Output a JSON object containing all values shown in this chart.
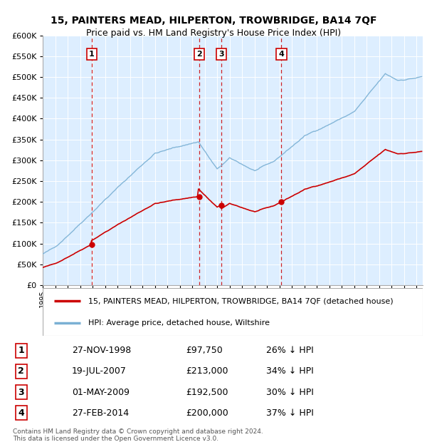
{
  "title": "15, PAINTERS MEAD, HILPERTON, TROWBRIDGE, BA14 7QF",
  "subtitle": "Price paid vs. HM Land Registry's House Price Index (HPI)",
  "sales": [
    {
      "label": "1",
      "year": 1998.92,
      "price": 97750,
      "date": "27-NOV-1998",
      "pct": "26%"
    },
    {
      "label": "2",
      "year": 2007.54,
      "price": 213000,
      "date": "19-JUL-2007",
      "pct": "34%"
    },
    {
      "label": "3",
      "year": 2009.33,
      "price": 192500,
      "date": "01-MAY-2009",
      "pct": "30%"
    },
    {
      "label": "4",
      "year": 2014.16,
      "price": 200000,
      "date": "27-FEB-2014",
      "pct": "37%"
    }
  ],
  "legend_property": "15, PAINTERS MEAD, HILPERTON, TROWBRIDGE, BA14 7QF (detached house)",
  "legend_hpi": "HPI: Average price, detached house, Wiltshire",
  "footer1": "Contains HM Land Registry data © Crown copyright and database right 2024.",
  "footer2": "This data is licensed under the Open Government Licence v3.0.",
  "property_color": "#cc0000",
  "hpi_color": "#7ab0d4",
  "background_color": "#ddeeff",
  "ylim": [
    0,
    600000
  ],
  "xlim_min": 1995.0,
  "xlim_max": 2025.5
}
